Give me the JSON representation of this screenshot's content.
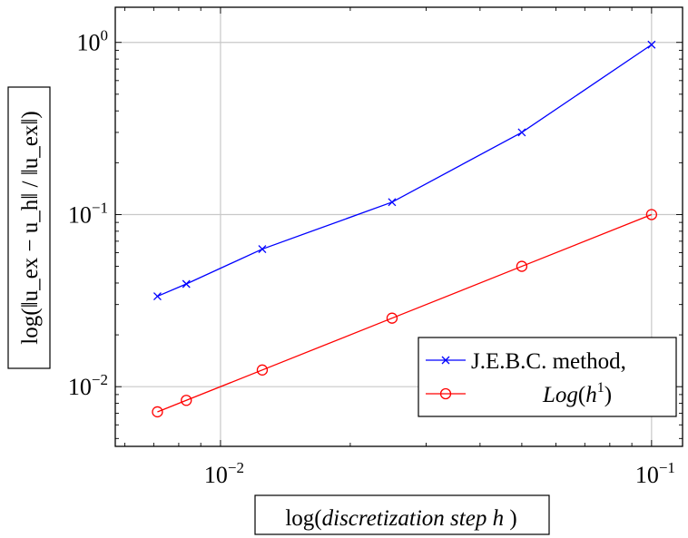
{
  "chart_data": {
    "type": "line",
    "xscale": "log",
    "yscale": "log",
    "xlim": [
      0.0057,
      0.118
    ],
    "ylim": [
      0.0045,
      1.6
    ],
    "grid": true,
    "xlabel": {
      "prefix": "log(",
      "italic": "discretization step h",
      "suffix": " )"
    },
    "ylabel": {
      "text": "log(‖u_ex − u_h‖ / ‖u_ex‖)"
    },
    "x_ticks": [
      {
        "value": 0.01,
        "base": "10",
        "exp": "−2"
      },
      {
        "value": 0.1,
        "base": "10",
        "exp": "−1"
      }
    ],
    "y_ticks": [
      {
        "value": 0.01,
        "base": "10",
        "exp": "−2"
      },
      {
        "value": 0.1,
        "base": "10",
        "exp": "−1"
      },
      {
        "value": 1,
        "base": "10",
        "exp": "0"
      }
    ],
    "legend_position": "bottom-right",
    "series": [
      {
        "name": "J.E.B.C. method,",
        "color": "#0000ff",
        "marker": "x",
        "x": [
          0.00714,
          0.00833,
          0.0125,
          0.025,
          0.05,
          0.1
        ],
        "y": [
          0.0335,
          0.0395,
          0.063,
          0.118,
          0.3,
          0.97
        ]
      },
      {
        "name": "Log(h1)",
        "name_display": {
          "italic": "Log",
          "paren_open": "(",
          "h": "h",
          "sup": "1",
          "paren_close": ")"
        },
        "color": "#ff0000",
        "marker": "o",
        "x": [
          0.00714,
          0.00833,
          0.0125,
          0.025,
          0.05,
          0.1
        ],
        "y": [
          0.00714,
          0.00833,
          0.0125,
          0.025,
          0.05,
          0.1
        ]
      }
    ]
  }
}
